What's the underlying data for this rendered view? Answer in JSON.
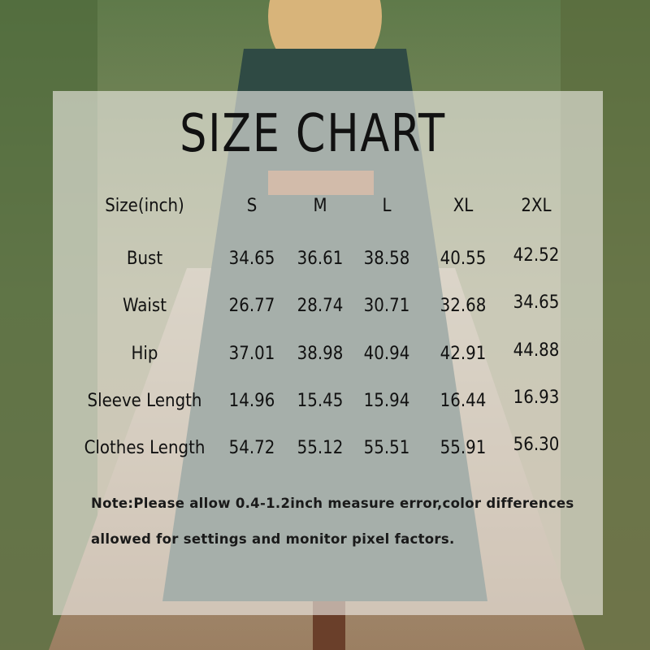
{
  "title": "SIZE CHART",
  "table": {
    "header": [
      "Size(inch)",
      "S",
      "M",
      "L",
      "XL",
      "2XL"
    ],
    "rows": [
      {
        "label": "Bust",
        "values": [
          "34.65",
          "36.61",
          "38.58",
          "40.55",
          "42.52"
        ]
      },
      {
        "label": "Waist",
        "values": [
          "26.77",
          "28.74",
          "30.71",
          "32.68",
          "34.65"
        ]
      },
      {
        "label": "Hip",
        "values": [
          "37.01",
          "38.98",
          "40.94",
          "42.91",
          "44.88"
        ]
      },
      {
        "label": "Sleeve Length",
        "values": [
          "14.96",
          "15.45",
          "15.94",
          "16.44",
          "16.93"
        ]
      },
      {
        "label": "Clothes Length",
        "values": [
          "54.72",
          "55.12",
          "55.51",
          "55.91",
          "56.30"
        ]
      }
    ]
  },
  "note": {
    "line1": "Note:Please allow 0.4-1.2inch measure error,color differences",
    "line2": "allowed for settings and monitor pixel factors."
  }
}
